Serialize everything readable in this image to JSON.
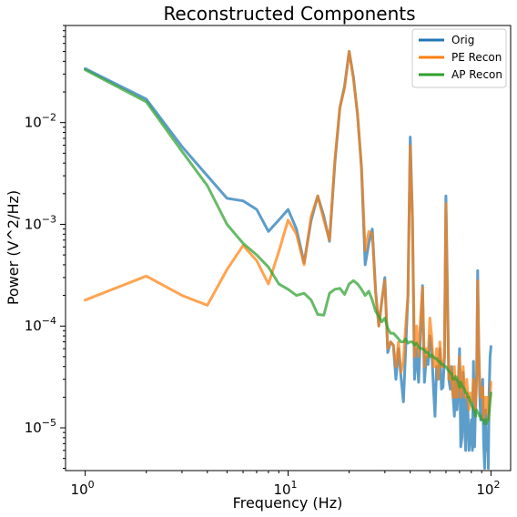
{
  "chart_data": {
    "type": "line",
    "title": "Reconstructed Components",
    "xlabel": "Frequency (Hz)",
    "ylabel": "Power (V^2/Hz)",
    "xscale": "log",
    "yscale": "log",
    "xlim": [
      0.8,
      125
    ],
    "ylim": [
      3.8e-06,
      0.09
    ],
    "x_ticks": [
      {
        "value": 1,
        "base": "10",
        "exp": "0"
      },
      {
        "value": 10,
        "base": "10",
        "exp": "1"
      },
      {
        "value": 100,
        "base": "10",
        "exp": "2"
      }
    ],
    "y_ticks": [
      {
        "value": 1e-05,
        "base": "10",
        "exp": "−5"
      },
      {
        "value": 0.0001,
        "base": "10",
        "exp": "−4"
      },
      {
        "value": 0.001,
        "base": "10",
        "exp": "−3"
      },
      {
        "value": 0.01,
        "base": "10",
        "exp": "−2"
      }
    ],
    "grid": false,
    "legend": {
      "position": "top-right"
    },
    "series": [
      {
        "name": "Orig",
        "color": "#1f77b4",
        "x": [
          1,
          2,
          3,
          4,
          5,
          6,
          7,
          8,
          9,
          10,
          11,
          12,
          13,
          14,
          15,
          16,
          17,
          18,
          19,
          20,
          21,
          22,
          23,
          24,
          25,
          26,
          27,
          28,
          29,
          30,
          31,
          32,
          33,
          34,
          35,
          36,
          37,
          38,
          39,
          40,
          41,
          42,
          43,
          44,
          45,
          46,
          47,
          48,
          49,
          50,
          51,
          52,
          53,
          54,
          55,
          56,
          57,
          58,
          59,
          60,
          61,
          62,
          63,
          64,
          65,
          66,
          67,
          68,
          69,
          70,
          71,
          72,
          73,
          74,
          75,
          76,
          77,
          78,
          79,
          80,
          81,
          82,
          83,
          84,
          85,
          86,
          87,
          88,
          89,
          90,
          91,
          92,
          93,
          94,
          95,
          96,
          97,
          98,
          99,
          100
        ],
        "values": [
          0.034,
          0.017,
          0.0058,
          0.003,
          0.0018,
          0.0017,
          0.0014,
          0.00085,
          0.0011,
          0.0014,
          0.0009,
          0.00042,
          0.0011,
          0.0019,
          0.0012,
          0.00068,
          0.004,
          0.014,
          0.023,
          0.05,
          0.028,
          0.012,
          0.0036,
          0.0004,
          0.00065,
          0.0009,
          0.00022,
          0.0001,
          0.00018,
          0.0003,
          5.5e-05,
          7e-05,
          6.5e-05,
          3e-05,
          6e-05,
          3.2e-05,
          1.8e-05,
          6e-05,
          0.0002,
          0.0072,
          0.0012,
          3e-05,
          6e-05,
          2.8e-05,
          9e-05,
          0.00025,
          2.8e-05,
          5e-05,
          4.2e-05,
          8e-05,
          6e-05,
          2.6e-05,
          1.3e-05,
          4e-05,
          3e-05,
          6e-05,
          2.4e-05,
          2.5e-05,
          5e-05,
          0.0019,
          0.00024,
          3e-05,
          2.4e-05,
          4e-05,
          2.1e-05,
          1.3e-05,
          3e-05,
          1.5e-05,
          2.5e-05,
          6e-05,
          6.5e-06,
          8e-06,
          3.5e-05,
          1.2e-05,
          6e-06,
          2e-05,
          1.4e-05,
          6e-06,
          8.5e-06,
          1.2e-05,
          6e-06,
          4.5e-05,
          6.5e-06,
          1.8e-05,
          3.5e-05,
          0.00035,
          7e-05,
          2.2e-05,
          1.2e-05,
          2.2e-05,
          3e-05,
          7.5e-06,
          4e-06,
          1.5e-05,
          6e-06,
          9e-06,
          4e-06,
          2.2e-05,
          5e-05,
          6.3e-05
        ]
      },
      {
        "name": "PE Recon",
        "color": "#ff7f0e",
        "x": [
          1,
          2,
          3,
          4,
          5,
          6,
          7,
          8,
          9,
          10,
          11,
          12,
          13,
          14,
          15,
          16,
          17,
          18,
          19,
          20,
          21,
          22,
          23,
          24,
          25,
          26,
          27,
          28,
          29,
          30,
          31,
          32,
          33,
          34,
          35,
          36,
          37,
          38,
          39,
          40,
          41,
          42,
          43,
          44,
          45,
          46,
          47,
          48,
          49,
          50,
          51,
          52,
          53,
          54,
          55,
          56,
          57,
          58,
          59,
          60,
          61,
          62,
          63,
          64,
          65,
          66,
          67,
          68,
          69,
          70,
          71,
          72,
          73,
          74,
          75,
          76,
          77,
          78,
          79,
          80,
          81,
          82,
          83,
          84,
          85,
          86,
          87,
          88,
          89,
          90,
          91,
          92,
          93,
          94,
          95,
          96,
          97,
          98,
          99,
          100
        ],
        "values": [
          0.00018,
          0.00031,
          0.0002,
          0.00016,
          0.00036,
          0.00062,
          0.00044,
          0.00026,
          0.00054,
          0.0011,
          0.0008,
          0.0004,
          0.0012,
          0.0019,
          0.0011,
          0.0007,
          0.0043,
          0.014,
          0.022,
          0.05,
          0.027,
          0.012,
          0.0038,
          0.00055,
          0.00085,
          0.0008,
          0.00021,
          0.0001,
          0.00018,
          0.00028,
          6e-05,
          7e-05,
          6.5e-05,
          4e-05,
          7e-05,
          3.5e-05,
          4.5e-05,
          0.0001,
          0.0002,
          0.0059,
          0.0011,
          5e-05,
          0.0001,
          5e-05,
          0.00012,
          0.00024,
          4e-05,
          6e-05,
          5e-05,
          0.00012,
          8e-05,
          4e-05,
          4e-05,
          6e-05,
          3e-05,
          7e-05,
          4e-05,
          4e-05,
          5e-05,
          0.0016,
          0.00018,
          3e-05,
          4e-05,
          3e-05,
          2e-05,
          4e-05,
          2e-05,
          2e-05,
          3e-05,
          5e-05,
          2e-05,
          3e-05,
          4e-05,
          2e-05,
          2e-05,
          3e-05,
          2e-05,
          1.5e-05,
          2.2e-05,
          1.8e-05,
          2e-05,
          3e-05,
          1.8e-05,
          1.5e-05,
          3e-05,
          0.00028,
          6e-05,
          3e-05,
          2e-05,
          2e-05,
          2.5e-05,
          1.2e-05,
          1.6e-05,
          2e-05,
          1.4e-05,
          2e-05,
          1.2e-05,
          1.8e-05,
          2e-05,
          2.8e-05
        ]
      },
      {
        "name": "AP Recon",
        "color": "#2ca02c",
        "x": [
          1,
          2,
          3,
          4,
          5,
          6,
          7,
          8,
          9,
          10,
          11,
          12,
          13,
          14,
          15,
          16,
          17,
          18,
          19,
          20,
          21,
          22,
          23,
          24,
          25,
          26,
          27,
          28,
          29,
          30,
          31,
          32,
          33,
          34,
          35,
          36,
          37,
          38,
          39,
          40,
          41,
          42,
          43,
          44,
          45,
          46,
          47,
          48,
          49,
          50,
          51,
          52,
          53,
          54,
          55,
          56,
          57,
          58,
          59,
          60,
          61,
          62,
          63,
          64,
          65,
          66,
          67,
          68,
          69,
          70,
          71,
          72,
          73,
          74,
          75,
          76,
          77,
          78,
          79,
          80,
          81,
          82,
          83,
          84,
          85,
          86,
          87,
          88,
          89,
          90,
          91,
          92,
          93,
          94,
          95,
          96,
          97,
          98,
          99,
          100
        ],
        "values": [
          0.033,
          0.016,
          0.0052,
          0.0024,
          0.001,
          0.00065,
          0.0005,
          0.00038,
          0.00026,
          0.00023,
          0.0002,
          0.00021,
          0.00018,
          0.00013,
          0.000128,
          0.00021,
          0.00023,
          0.000235,
          0.000205,
          0.00026,
          0.00028,
          0.00026,
          0.00023,
          0.0002,
          0.00022,
          0.00018,
          0.00014,
          0.000125,
          0.00011,
          0.00012,
          9.5e-05,
          8.5e-05,
          8.5e-05,
          8e-05,
          7.5e-05,
          7e-05,
          7e-05,
          7.5e-05,
          6.8e-05,
          7e-05,
          7e-05,
          6.5e-05,
          6.8e-05,
          6.2e-05,
          6e-05,
          6e-05,
          5.8e-05,
          5.5e-05,
          5.5e-05,
          5e-05,
          5.2e-05,
          5e-05,
          4.8e-05,
          4.8e-05,
          4.5e-05,
          4.5e-05,
          4.2e-05,
          4.2e-05,
          4e-05,
          4e-05,
          3.8e-05,
          3.6e-05,
          3.5e-05,
          3.4e-05,
          3e-05,
          3e-05,
          3.2e-05,
          3e-05,
          2.8e-05,
          2.5e-05,
          2.8e-05,
          2.6e-05,
          2.5e-05,
          2.4e-05,
          2.2e-05,
          2.2e-05,
          2e-05,
          2e-05,
          1.8e-05,
          1.7e-05,
          1.6e-05,
          1.5e-05,
          1.4e-05,
          1.3e-05,
          1.5e-05,
          1.4e-05,
          1.4e-05,
          1.3e-05,
          1.3e-05,
          1.2e-05,
          1.2e-05,
          1.2e-05,
          1.1e-05,
          1.2e-05,
          1.1e-05,
          1.2e-05,
          1.2e-05,
          1.4e-05,
          1.8e-05,
          2.2e-05
        ]
      }
    ]
  }
}
